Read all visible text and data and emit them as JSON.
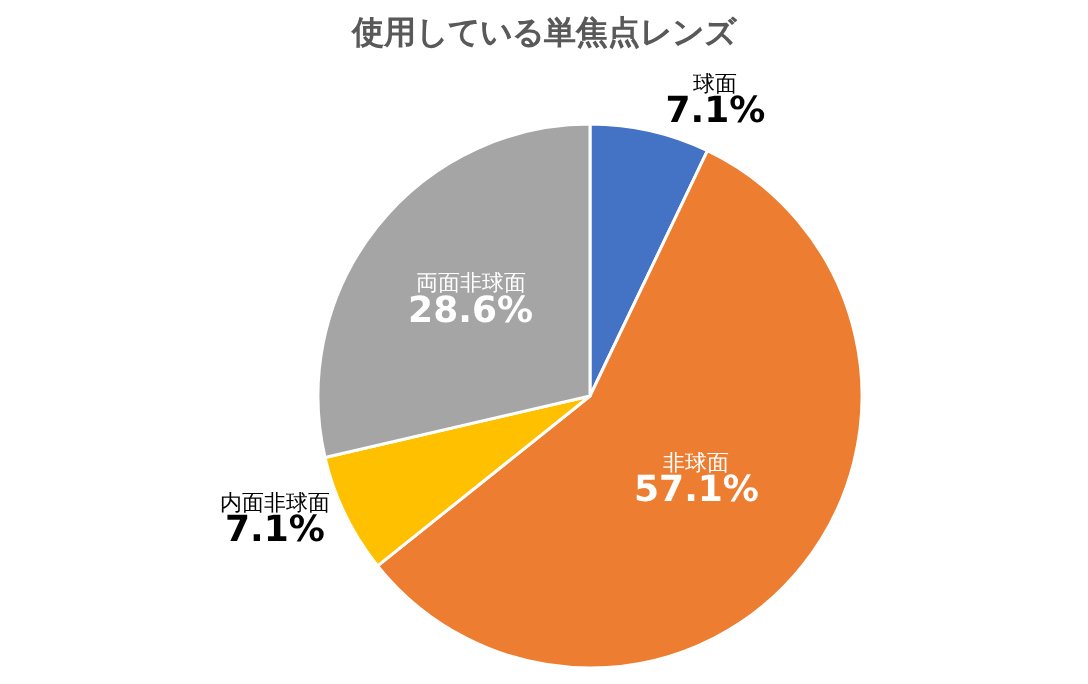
{
  "chart_data": {
    "type": "pie",
    "title": "使用している単焦点レンズ",
    "categories": [
      "球面",
      "非球面",
      "内面非球面",
      "両面非球面"
    ],
    "values": [
      7.1,
      57.1,
      7.1,
      28.6
    ],
    "colors": [
      "#4472c4",
      "#ed7d31",
      "#ffc000",
      "#a5a5a5"
    ],
    "value_labels": [
      "7.1%",
      "57.1%",
      "7.1%",
      "28.6%"
    ],
    "legend": false
  }
}
